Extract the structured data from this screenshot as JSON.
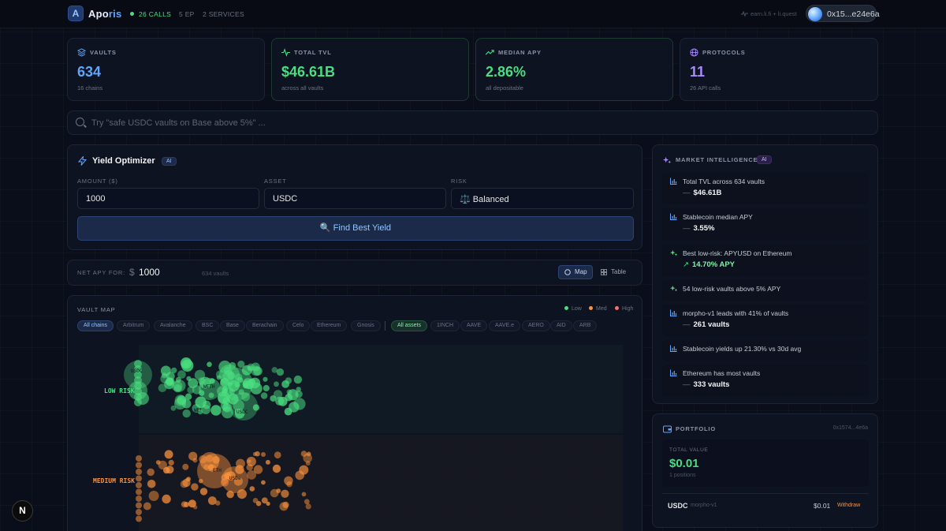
{
  "header": {
    "logo_letter": "A",
    "brand_a": "Apo",
    "brand_b": "ris",
    "calls": "26 CALLS",
    "endpoints": "5 EP",
    "services": "2 SERVICES",
    "source": "earn.li.fi + li.quest",
    "wallet": "0x15...e24e6a"
  },
  "stats": [
    {
      "label": "VAULTS",
      "value": "634",
      "sub": "16 chains",
      "color": "#60a5fa",
      "icon": "layers-icon"
    },
    {
      "label": "TOTAL TVL",
      "value": "$46.61B",
      "sub": "across all vaults",
      "color": "#4ade80",
      "icon": "activity-icon"
    },
    {
      "label": "MEDIAN APY",
      "value": "2.86%",
      "sub": "all depositable",
      "color": "#4ade80",
      "icon": "trending-up-icon"
    },
    {
      "label": "PROTOCOLS",
      "value": "11",
      "sub": "26 API calls",
      "color": "#a78bfa",
      "icon": "globe-icon"
    }
  ],
  "search": {
    "placeholder": "Try \"safe USDC vaults on Base above 5%\" ..."
  },
  "optimizer": {
    "title": "Yield Optimizer",
    "badge": "AI",
    "amount_label": "AMOUNT ($)",
    "amount_value": "1000",
    "asset_label": "ASSET",
    "asset_value": "USDC",
    "risk_label": "RISK",
    "risk_value": "⚖️ Balanced",
    "button": "🔍 Find Best Yield"
  },
  "netapy": {
    "label": "NET APY FOR:",
    "currency": "$",
    "value": "1000",
    "count": "634 vaults",
    "map_label": "Map",
    "table_label": "Table"
  },
  "vault_map": {
    "title": "VAULT MAP",
    "legend": [
      {
        "label": "Low",
        "color": "#4ade80"
      },
      {
        "label": "Med",
        "color": "#fb923c"
      },
      {
        "label": "High",
        "color": "#f87171"
      }
    ],
    "chains": [
      "All chains",
      "Arbitrum",
      "Avalanche",
      "BSC",
      "Base",
      "Berachain",
      "Celo",
      "Ethereum",
      "Gnosis"
    ],
    "assets": [
      "All assets",
      "1INCH",
      "AAVE",
      "AAVE.e",
      "AERO",
      "AID",
      "ARB"
    ],
    "rows": {
      "low": "LOW RISK",
      "medium": "MEDIUM RISK"
    },
    "bubble_labels": {
      "low_a": "USDC",
      "low_b": "WETH",
      "low_c": "USDC",
      "low_d": "WE",
      "medium_a": "ETH",
      "medium_b": "USDe"
    },
    "colors": {
      "low": "#4ade80",
      "medium": "#fb923c"
    }
  },
  "market": {
    "title": "MARKET INTELLIGENCE",
    "badge": "AI",
    "insights": [
      {
        "icon": "bar-chart-icon",
        "text": "Total TVL across 634 vaults",
        "value": "$46.61B",
        "prefix": "—"
      },
      {
        "icon": "bar-chart-icon",
        "text": "Stablecoin median APY",
        "value": "3.55%",
        "prefix": "—"
      },
      {
        "icon": "sparkles-icon",
        "text": "Best low-risk: APYUSD on Ethereum",
        "value": "14.70% APY",
        "prefix": "↗"
      },
      {
        "icon": "sparkles-icon",
        "text": "54 low-risk vaults above 5% APY",
        "value": "",
        "prefix": ""
      },
      {
        "icon": "bar-chart-icon",
        "text": "morpho-v1 leads with 41% of vaults",
        "value": "261 vaults",
        "prefix": "—"
      },
      {
        "icon": "bar-chart-icon",
        "text": "Stablecoin yields up 21.30% vs 30d avg",
        "value": "",
        "prefix": ""
      },
      {
        "icon": "bar-chart-icon",
        "text": "Ethereum has most vaults",
        "value": "333 vaults",
        "prefix": "—"
      }
    ]
  },
  "portfolio": {
    "title": "PORTFOLIO",
    "address": "0x1574...4e6a",
    "total_label": "TOTAL VALUE",
    "total_value": "$0.01",
    "positions": "1 positions",
    "row": {
      "asset": "USDC",
      "protocol": "morpho-v1",
      "amount": "$0.01",
      "action": "Withdraw"
    }
  },
  "dev_badge": "N"
}
